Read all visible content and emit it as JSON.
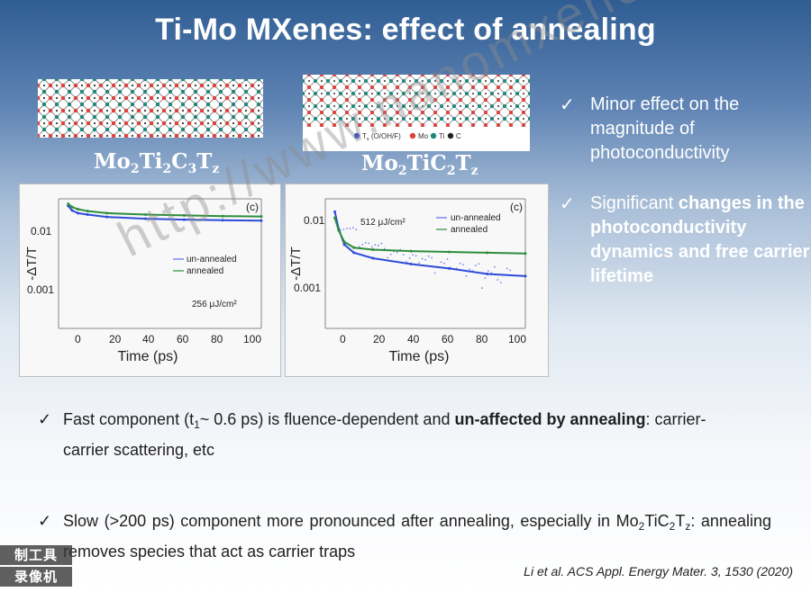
{
  "title": "Ti-Mo MXenes: effect of annealing",
  "structures": {
    "left_formula": {
      "base1": "Mo",
      "sub1": "2",
      "base2": "Ti",
      "sub2": "2",
      "base3": "C",
      "sub3": "3",
      "base4": "T",
      "sub4": "z"
    },
    "right_formula": {
      "base1": "Mo",
      "sub1": "2",
      "base2": "TiC",
      "sub2": "2",
      "base3": "T",
      "sub3": "z"
    },
    "legend": {
      "tx": "T",
      "tx_sub": "x",
      "tx_tail": " (O/OH/F)",
      "mo": "Mo",
      "ti": "Ti",
      "c": "C"
    }
  },
  "checklist": [
    {
      "mark": "✓",
      "text": "Minor effect on the magnitude of photoconductivity"
    },
    {
      "mark": "✓",
      "prefix": "Significant ",
      "bold": "changes in the photoconductivity dynamics and free carrier lifetime"
    }
  ],
  "plots": [
    {
      "panel": "(c)",
      "xlabel": "Time (ps)",
      "ylabel": "-ΔT/T",
      "xticks": [
        "0",
        "20",
        "40",
        "60",
        "80",
        "100"
      ],
      "yticks": [
        "0.01",
        "0.001"
      ],
      "legend": [
        "un-annealed",
        "annealed"
      ],
      "annotation": "256 μJ/cm²"
    },
    {
      "panel": "(c)",
      "xlabel": "Time (ps)",
      "ylabel": "-ΔT/T",
      "xticks": [
        "0",
        "20",
        "40",
        "60",
        "80",
        "100"
      ],
      "yticks": [
        "0.01",
        "0.001"
      ],
      "legend": [
        "un-annealed",
        "annealed"
      ],
      "annotation": "512 μJ/cm²"
    }
  ],
  "bottom": {
    "fast": {
      "bullet": "✓",
      "text1": "Fast component (t",
      "sub": "1",
      "text2": "~ 0.6 ps) is fluence-dependent and ",
      "bold": "un-affected by annealing",
      "text3": ": carrier-carrier scattering, etc"
    },
    "slow": {
      "bullet": "✓",
      "text1": "Slow (>200 ps) component more pronounced after annealing, especially in Mo",
      "sub1": "2",
      "text2": "TiC",
      "sub2": "2",
      "text3": "T",
      "sub3": "z",
      "text4": ": annealing removes species that act as carrier traps"
    }
  },
  "citation": "Li et al. ACS Appl. Energy Mater. 3, 1530 (2020)",
  "watermark": "http://www.nanomxenes.com",
  "recorder": {
    "top": "制工具",
    "bottom": "录像机"
  },
  "colors": {
    "background_top": "#2f5d93",
    "background_bottom": "#ffffff",
    "blue": "#2f4bd8",
    "green": "#2d8d3b",
    "red": "#e0413a",
    "teal": "#1f8a7a",
    "dark": "#1f1f1f"
  },
  "chart_data": [
    {
      "type": "line",
      "x": [
        0,
        2,
        5,
        10,
        20,
        40,
        60,
        80,
        100
      ],
      "ylim": [
        0.0001,
        0.03
      ],
      "xlim": [
        -5,
        100
      ],
      "series": [
        {
          "name": "un-annealed",
          "values": [
            0.022,
            0.018,
            0.016,
            0.015,
            0.0135,
            0.0125,
            0.012,
            0.0117,
            0.0115
          ]
        },
        {
          "name": "annealed",
          "values": [
            0.024,
            0.021,
            0.019,
            0.0175,
            0.016,
            0.015,
            0.0145,
            0.014,
            0.0138
          ]
        }
      ]
    },
    {
      "type": "line",
      "x": [
        0,
        2,
        5,
        10,
        20,
        40,
        60,
        80,
        100
      ],
      "ylim": [
        0.0001,
        0.03
      ],
      "xlim": [
        -5,
        100
      ],
      "series": [
        {
          "name": "un-annealed",
          "values": [
            0.017,
            0.008,
            0.004,
            0.0028,
            0.0022,
            0.0017,
            0.0014,
            0.0011,
            0.001
          ]
        },
        {
          "name": "annealed",
          "values": [
            0.013,
            0.0075,
            0.0045,
            0.0035,
            0.0032,
            0.003,
            0.0029,
            0.0028,
            0.0027
          ]
        }
      ]
    }
  ]
}
